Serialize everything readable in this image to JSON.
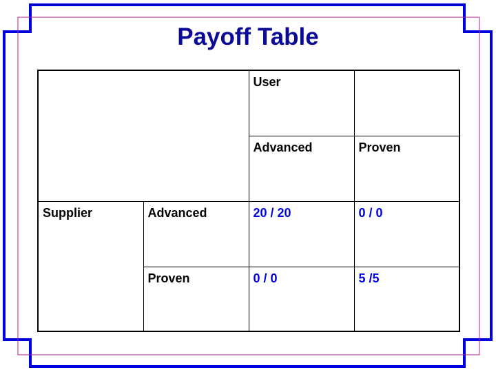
{
  "slide": {
    "title": "Payoff Table",
    "colors": {
      "title": "#0a0a96",
      "values": "#0000e0",
      "frame": "#0000dd",
      "inner_frame": "#b0208a"
    }
  },
  "table": {
    "column_player": "User",
    "row_player": "Supplier",
    "strategies": {
      "advanced": "Advanced",
      "proven": "Proven"
    },
    "payoffs": {
      "advanced_advanced": "20 / 20",
      "advanced_proven": "0 / 0",
      "proven_advanced": "0 / 0",
      "proven_proven": "5 /5"
    }
  }
}
